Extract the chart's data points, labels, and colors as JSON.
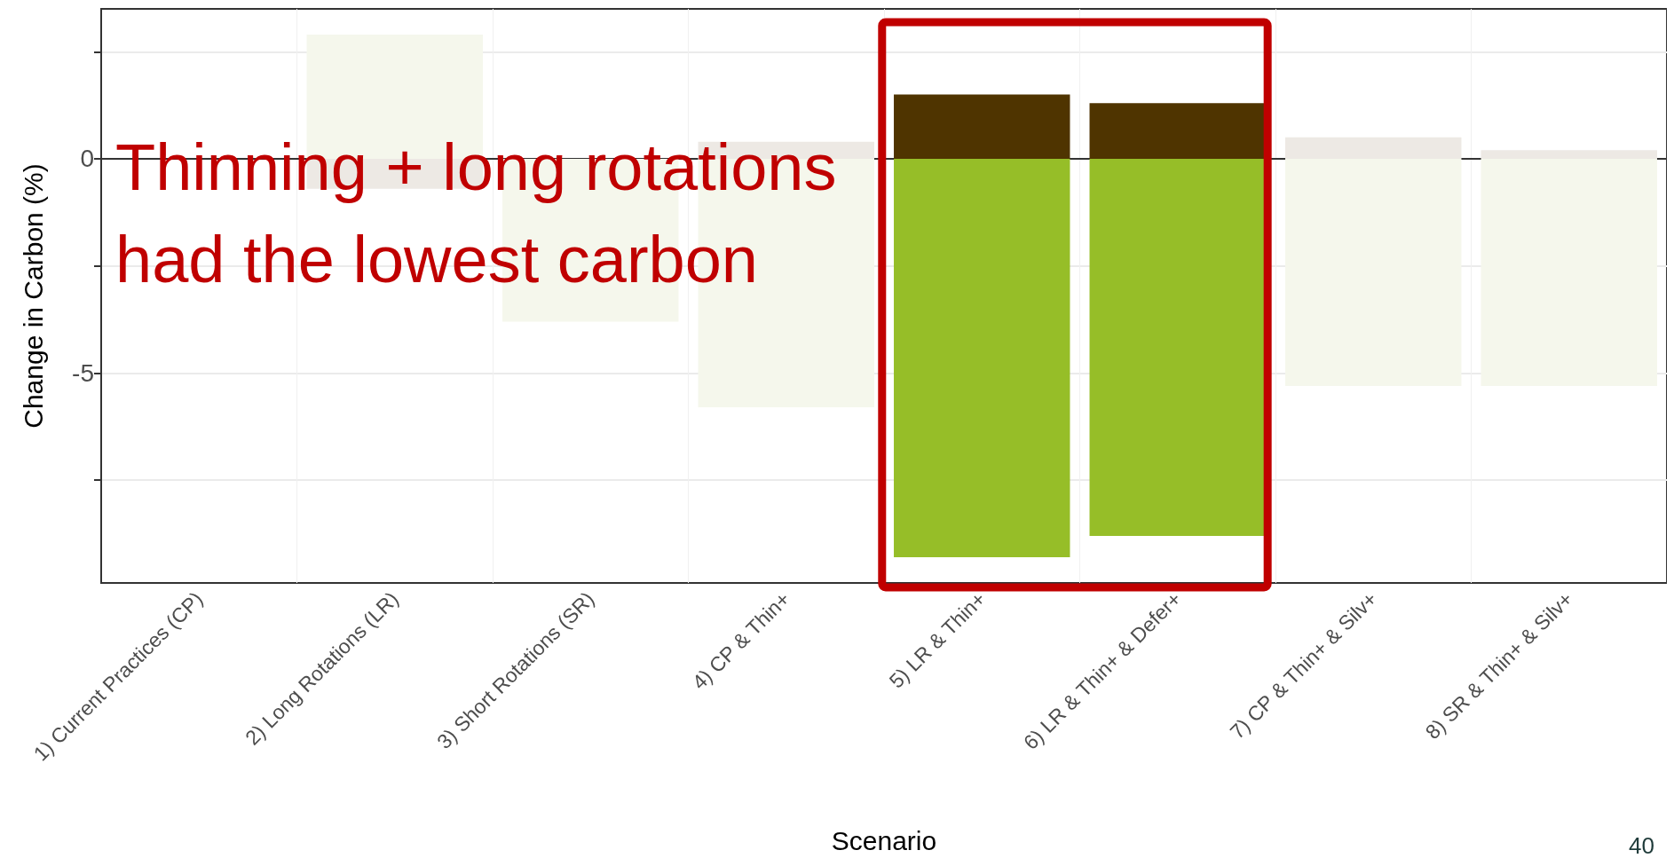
{
  "chart_data": {
    "type": "bar",
    "stacked": true,
    "xlabel": "Scenario",
    "ylabel": "Change in Carbon (%)",
    "categories": [
      "1) Current Practices (CP)",
      "2) Long Rotations (LR)",
      "3) Short Rotations (SR)",
      "4) CP & Thin+",
      "5) LR & Thin+",
      "6) LR & Thin+ & Defer+",
      "7) CP & Thin+ & Silv+",
      "8) SR & Thin+ & Silv+"
    ],
    "series": [
      {
        "colors": [
          "#ede9e4",
          "#ede9e4",
          "#ede9e4",
          "#ede9e4",
          "#4f3400",
          "#4f3400",
          "#ede9e4",
          "#ede9e4"
        ],
        "values": [
          0,
          -0.7,
          0,
          0.4,
          1.5,
          1.3,
          0.5,
          0.2
        ]
      },
      {
        "colors": [
          "#f5f7ec",
          "#f5f7ec",
          "#f5f7ec",
          "#f5f7ec",
          "#96be28",
          "#96be28",
          "#f5f7ec",
          "#f5f7ec"
        ],
        "values": [
          0,
          2.9,
          -3.8,
          -5.8,
          -9.3,
          -8.8,
          -5.3,
          -5.3
        ]
      }
    ],
    "ylim": [
      -9.9,
      3.5
    ],
    "yticks": [
      {
        "value": -7.5,
        "label": null
      },
      -5,
      {
        "value": -2.5,
        "label": null
      },
      0,
      {
        "value": 2.5,
        "label": null
      }
    ],
    "grid": true,
    "annotations": [
      "Thinning + long rotations had the lowest carbon",
      "40"
    ]
  }
}
